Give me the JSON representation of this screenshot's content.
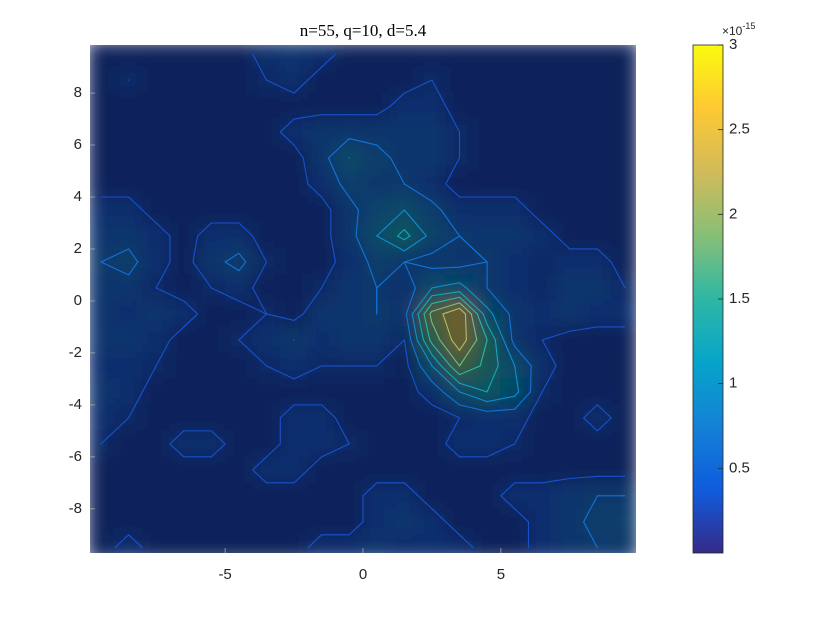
{
  "chart_data": {
    "type": "contourf",
    "title": "n=55, q=10, d=5.4",
    "colormap": "parula",
    "xlim": [
      -9.9,
      9.9
    ],
    "ylim": [
      -9.7,
      9.85
    ],
    "xticks": [
      -5,
      0,
      5
    ],
    "yticks": [
      -8,
      -6,
      -4,
      -2,
      0,
      2,
      4,
      6,
      8
    ],
    "clim": [
      0,
      3
    ],
    "cticks": [
      0.5,
      1,
      1.5,
      2,
      2.5,
      3
    ],
    "colorbar_exponent": {
      "base": "×10",
      "power": "-15"
    },
    "levels": [
      0.3,
      0.6,
      0.9,
      1.2,
      1.5,
      1.8,
      2.1
    ],
    "x": [
      -9.5,
      -8.5,
      -7.5,
      -6.5,
      -5.5,
      -4.5,
      -3.5,
      -2.5,
      -1.5,
      -0.5,
      0.5,
      1.5,
      2.5,
      3.5,
      4.5,
      5.5,
      6.5,
      7.5,
      8.5,
      9.5
    ],
    "y": [
      9.5,
      8.5,
      7.5,
      6.5,
      5.5,
      4.5,
      3.5,
      2.5,
      1.5,
      0.5,
      -0.5,
      -1.5,
      -2.5,
      -3.5,
      -4.5,
      -5.5,
      -6.5,
      -7.5,
      -8.5,
      -9.5
    ],
    "z": [
      [
        0.2,
        0.2,
        0.2,
        0.2,
        0.2,
        0.2,
        0.4,
        0.5,
        0.4,
        0.2,
        0.2,
        0.2,
        0.2,
        0.2,
        0.2,
        0.2,
        0.2,
        0.2,
        0.2,
        0.2
      ],
      [
        0.2,
        0.3,
        0.2,
        0.2,
        0.2,
        0.2,
        0.3,
        0.4,
        0.2,
        0.2,
        0.2,
        0.2,
        0.3,
        0.2,
        0.2,
        0.2,
        0.2,
        0.2,
        0.2,
        0.2
      ],
      [
        0.2,
        0.2,
        0.2,
        0.2,
        0.2,
        0.2,
        0.2,
        0.2,
        0.2,
        0.2,
        0.2,
        0.4,
        0.4,
        0.2,
        0.2,
        0.2,
        0.2,
        0.2,
        0.2,
        0.2
      ],
      [
        0.2,
        0.2,
        0.2,
        0.2,
        0.2,
        0.2,
        0.2,
        0.4,
        0.5,
        0.5,
        0.5,
        0.5,
        0.5,
        0.3,
        0.2,
        0.2,
        0.2,
        0.2,
        0.2,
        0.2
      ],
      [
        0.2,
        0.2,
        0.2,
        0.2,
        0.2,
        0.2,
        0.2,
        0.2,
        0.5,
        0.9,
        0.7,
        0.5,
        0.5,
        0.3,
        0.2,
        0.2,
        0.2,
        0.2,
        0.2,
        0.2
      ],
      [
        0.2,
        0.2,
        0.2,
        0.2,
        0.2,
        0.2,
        0.2,
        0.2,
        0.4,
        0.7,
        0.6,
        0.6,
        0.4,
        0.2,
        0.2,
        0.2,
        0.2,
        0.2,
        0.2,
        0.2
      ],
      [
        0.4,
        0.4,
        0.2,
        0.2,
        0.2,
        0.2,
        0.2,
        0.2,
        0.2,
        0.5,
        0.8,
        0.9,
        0.7,
        0.4,
        0.4,
        0.4,
        0.2,
        0.2,
        0.2,
        0.2
      ],
      [
        0.5,
        0.5,
        0.4,
        0.2,
        0.4,
        0.4,
        0.2,
        0.2,
        0.2,
        0.5,
        0.9,
        1.3,
        0.8,
        0.6,
        0.5,
        0.5,
        0.4,
        0.2,
        0.2,
        0.2
      ],
      [
        0.6,
        0.7,
        0.4,
        0.2,
        0.5,
        0.7,
        0.3,
        0.2,
        0.2,
        0.4,
        0.7,
        0.6,
        0.5,
        0.5,
        0.6,
        0.4,
        0.3,
        0.4,
        0.4,
        0.2
      ],
      [
        0.5,
        0.5,
        0.3,
        0.2,
        0.3,
        0.4,
        0.2,
        0.2,
        0.3,
        0.5,
        0.6,
        0.4,
        0.9,
        1.0,
        0.6,
        0.4,
        0.3,
        0.5,
        0.5,
        0.3
      ],
      [
        0.5,
        0.4,
        0.5,
        0.4,
        0.2,
        0.2,
        0.3,
        0.2,
        0.5,
        0.5,
        0.6,
        0.5,
        1.9,
        2.4,
        1.0,
        0.5,
        0.4,
        0.5,
        0.4,
        0.4
      ],
      [
        0.5,
        0.5,
        0.4,
        0.2,
        0.2,
        0.3,
        0.4,
        0.6,
        0.4,
        0.5,
        0.5,
        0.3,
        1.6,
        2.3,
        1.5,
        0.5,
        0.3,
        0.2,
        0.2,
        0.2
      ],
      [
        0.4,
        0.4,
        0.3,
        0.2,
        0.2,
        0.2,
        0.3,
        0.4,
        0.3,
        0.3,
        0.3,
        0.2,
        0.9,
        1.8,
        1.4,
        0.9,
        0.4,
        0.2,
        0.2,
        0.2
      ],
      [
        0.5,
        0.4,
        0.2,
        0.2,
        0.2,
        0.2,
        0.2,
        0.2,
        0.2,
        0.2,
        0.2,
        0.2,
        0.4,
        0.9,
        1.2,
        1.0,
        0.3,
        0.2,
        0.2,
        0.2
      ],
      [
        0.4,
        0.3,
        0.2,
        0.2,
        0.2,
        0.2,
        0.2,
        0.4,
        0.4,
        0.2,
        0.2,
        0.2,
        0.2,
        0.3,
        0.4,
        0.4,
        0.2,
        0.2,
        0.4,
        0.2
      ],
      [
        0.3,
        0.2,
        0.2,
        0.4,
        0.4,
        0.2,
        0.2,
        0.4,
        0.4,
        0.3,
        0.2,
        0.2,
        0.2,
        0.4,
        0.4,
        0.3,
        0.2,
        0.2,
        0.2,
        0.2
      ],
      [
        0.2,
        0.2,
        0.2,
        0.2,
        0.2,
        0.2,
        0.4,
        0.4,
        0.2,
        0.2,
        0.2,
        0.2,
        0.2,
        0.2,
        0.2,
        0.2,
        0.2,
        0.2,
        0.2,
        0.2
      ],
      [
        0.2,
        0.2,
        0.2,
        0.2,
        0.2,
        0.2,
        0.2,
        0.2,
        0.2,
        0.2,
        0.4,
        0.4,
        0.2,
        0.2,
        0.2,
        0.4,
        0.4,
        0.5,
        0.6,
        0.6
      ],
      [
        0.2,
        0.2,
        0.2,
        0.2,
        0.2,
        0.2,
        0.2,
        0.2,
        0.2,
        0.2,
        0.4,
        0.5,
        0.4,
        0.2,
        0.2,
        0.2,
        0.4,
        0.5,
        0.7,
        0.7
      ],
      [
        0.2,
        0.4,
        0.2,
        0.2,
        0.2,
        0.2,
        0.2,
        0.2,
        0.4,
        0.4,
        0.5,
        0.4,
        0.4,
        0.4,
        0.2,
        0.2,
        0.4,
        0.5,
        0.6,
        0.6
      ]
    ]
  }
}
